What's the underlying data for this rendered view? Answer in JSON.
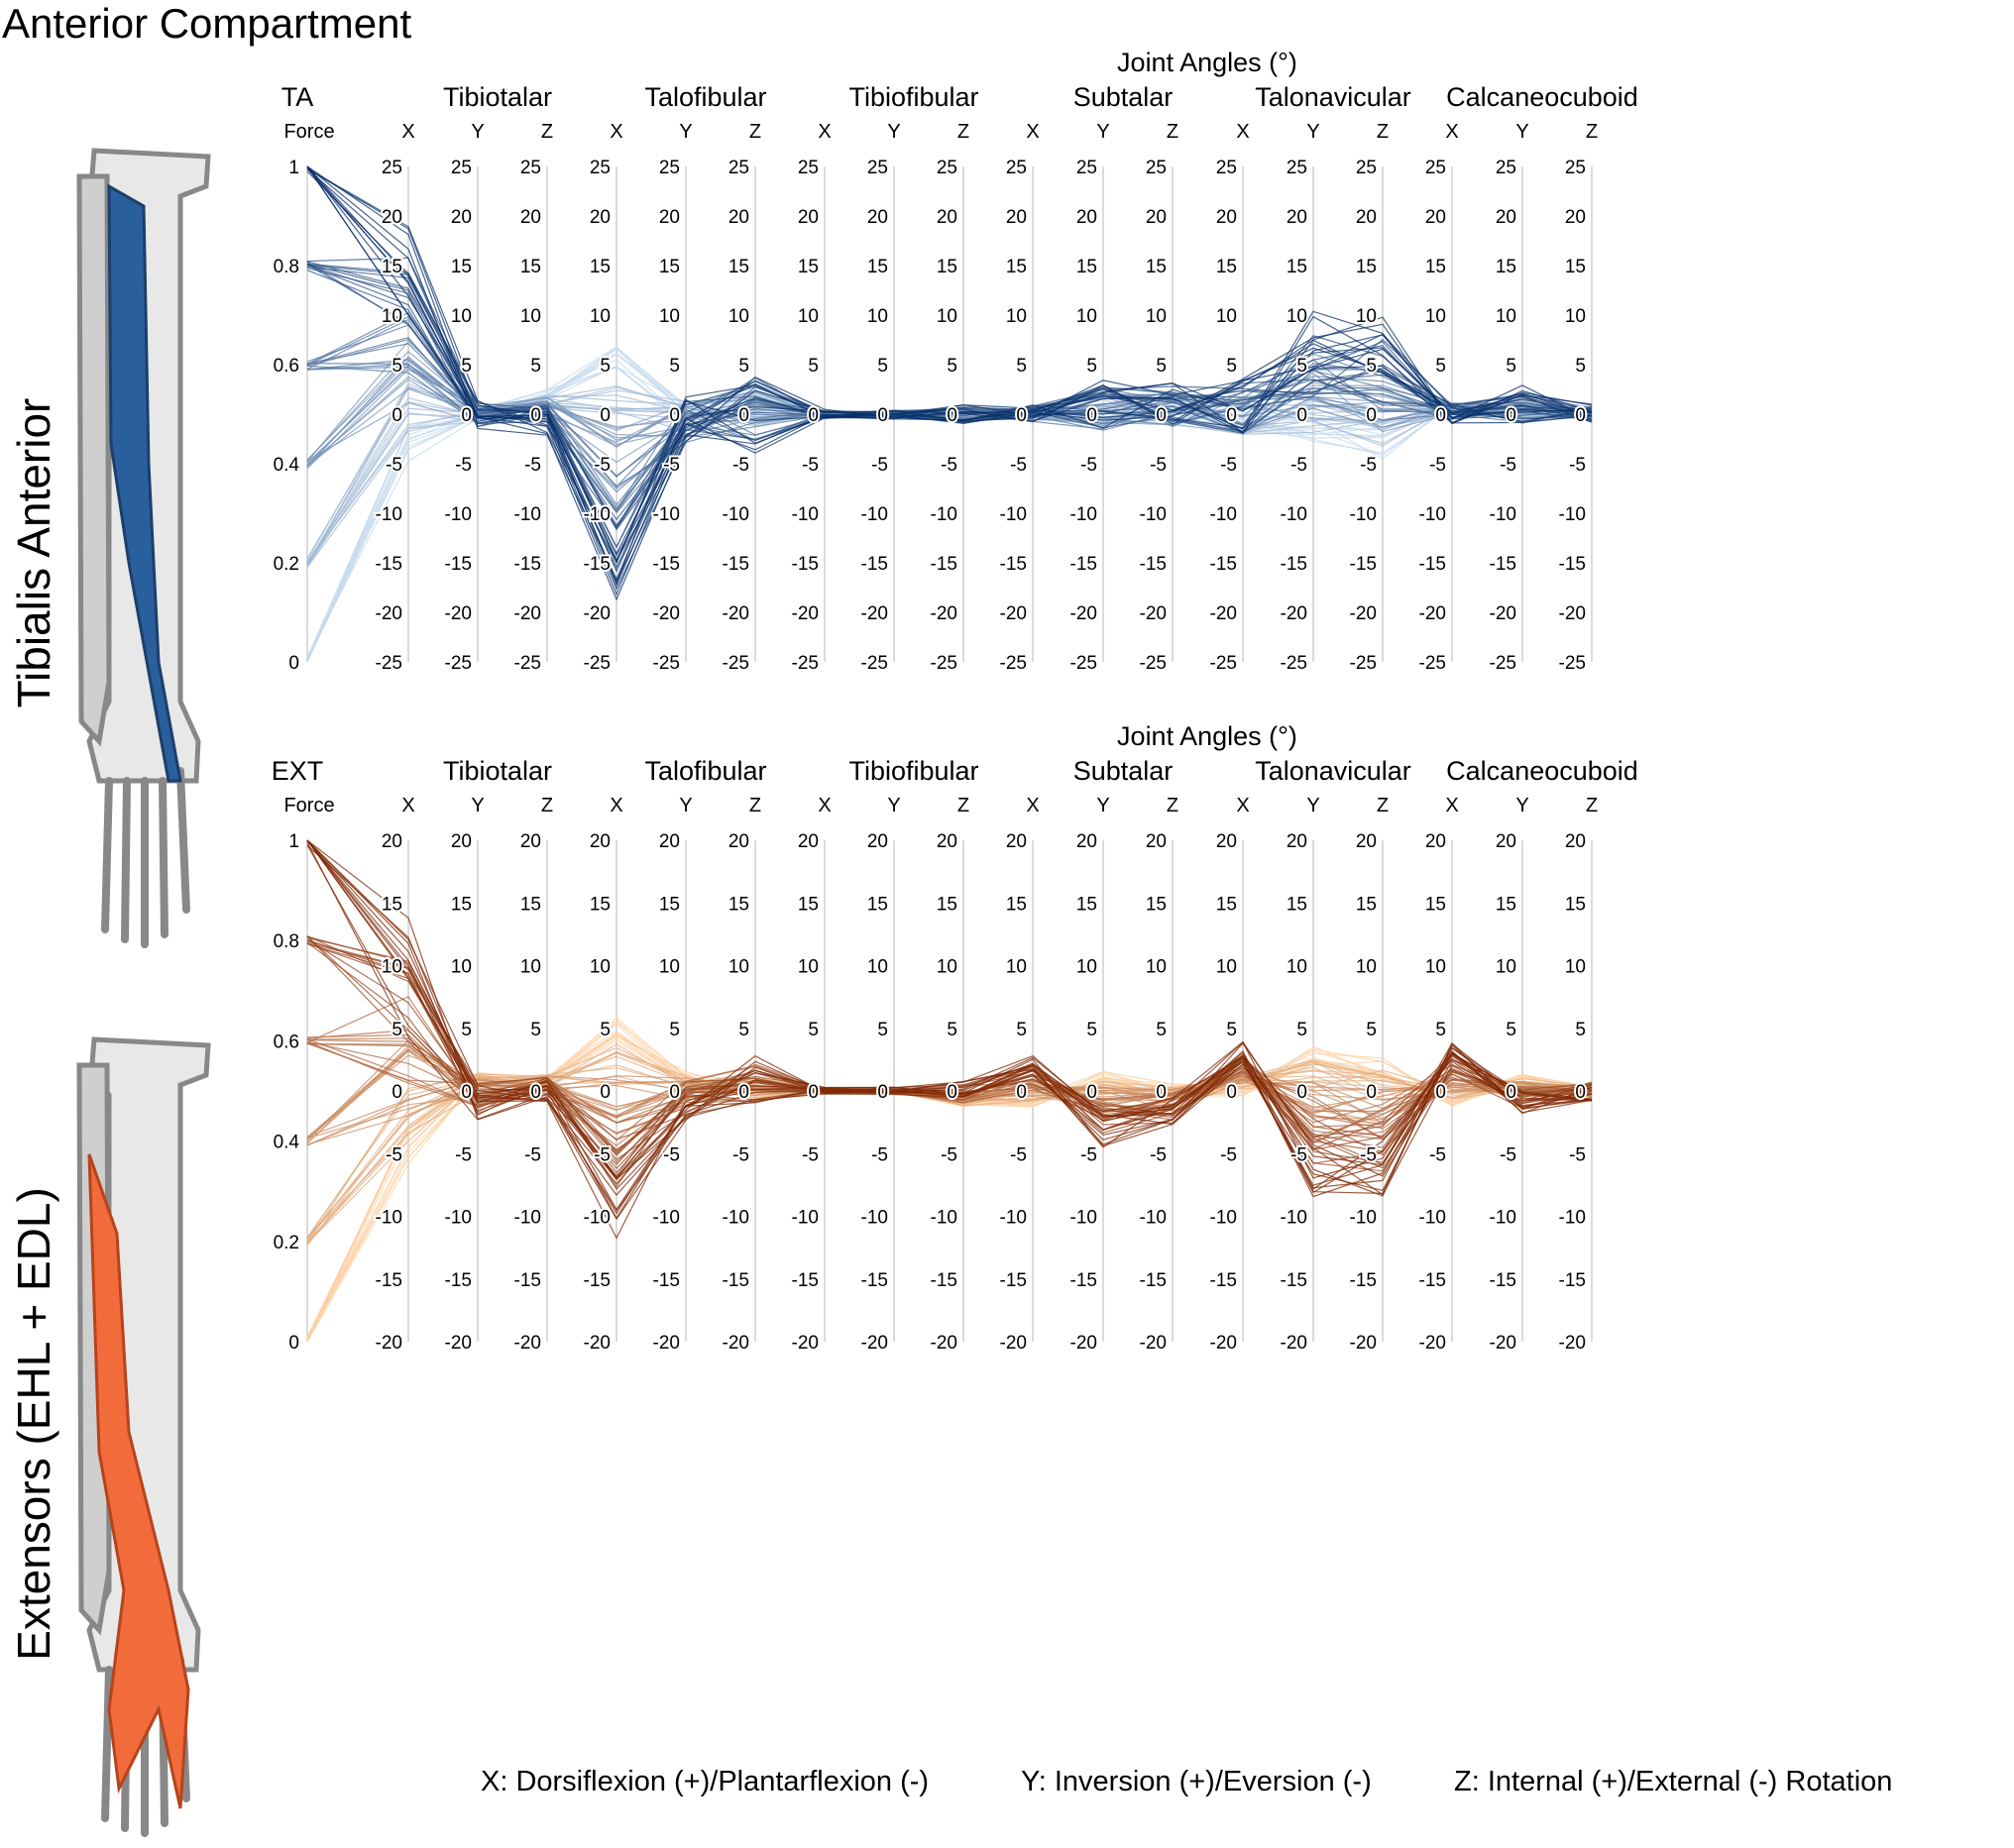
{
  "title": "Anterior Compartment",
  "panels": [
    {
      "side_label": "Tibialis Anterior",
      "muscle": "TA",
      "force_label": "Force",
      "group_title": "Joint Angles (°)",
      "color_light": "#c6dbef",
      "color_dark": "#08306b",
      "muscle_color": "#2a5f9e"
    },
    {
      "side_label": "Extensors (EHL + EDL)",
      "muscle": "EXT",
      "force_label": "Force",
      "group_title": "Joint Angles (°)",
      "color_light": "#fdd0a2",
      "color_dark": "#7f2704",
      "muscle_color": "#f26b3a"
    }
  ],
  "footer": {
    "x_def": "X: Dorsiflexion (+)/Plantarflexion (-)",
    "y_def": "Y: Inversion (+)/Eversion (-)",
    "z_def": "Z: Internal (+)/External (-) Rotation"
  },
  "chart_data": [
    {
      "type": "parallel_coordinates",
      "title": "Tibialis Anterior",
      "xlabel": "Joint Angles (°)",
      "joints": [
        "Tibiotalar",
        "Talofibular",
        "Tibiofibular",
        "Subtalar",
        "Talonavicular",
        "Calcaneocuboid"
      ],
      "axis_letters": [
        "X",
        "Y",
        "Z"
      ],
      "force_axis": {
        "label": "Force",
        "muscle": "TA",
        "range": [
          0,
          1
        ],
        "ticks": [
          "1",
          "0.8",
          "0.6",
          "0.4",
          "0.2",
          "0"
        ]
      },
      "angle_axis_range": [
        -25,
        25
      ],
      "angle_ticks": [
        "25",
        "20",
        "15",
        "10",
        "5",
        "0",
        "-5",
        "-10",
        "-15",
        "-20",
        "-25"
      ],
      "force_levels": [
        0,
        0.2,
        0.4,
        0.6,
        0.8,
        1.0
      ],
      "profile_description": "Joint angle per axis versus force; mean angle at force = 1 (degrees)",
      "angles_at_full_force": [
        15,
        0,
        -1,
        -17,
        -1,
        0,
        0,
        0,
        0,
        0,
        1,
        1,
        1,
        7,
        6,
        0,
        1,
        0
      ],
      "spread_at_full_force": [
        5,
        1.5,
        1.5,
        3,
        3,
        4,
        0.5,
        0.5,
        1,
        1,
        3,
        2.5,
        3,
        4,
        4,
        1,
        2,
        1
      ],
      "angles_at_zero_force": [
        -3,
        0,
        2,
        6,
        0,
        1,
        0,
        0,
        0,
        0,
        0,
        0,
        -1,
        -2,
        -3,
        1,
        0,
        0
      ]
    },
    {
      "type": "parallel_coordinates",
      "title": "Extensors (EHL + EDL)",
      "xlabel": "Joint Angles (°)",
      "joints": [
        "Tibiotalar",
        "Talofibular",
        "Tibiofibular",
        "Subtalar",
        "Talonavicular",
        "Calcaneocuboid"
      ],
      "axis_letters": [
        "X",
        "Y",
        "Z"
      ],
      "force_axis": {
        "label": "Force",
        "muscle": "EXT",
        "range": [
          0,
          1
        ],
        "ticks": [
          "1",
          "0.8",
          "0.6",
          "0.4",
          "0.2",
          "0"
        ]
      },
      "angle_axis_range": [
        -20,
        20
      ],
      "angle_ticks": [
        "20",
        "15",
        "10",
        "5",
        "0",
        "-5",
        "-10",
        "-15",
        "-20"
      ],
      "force_levels": [
        0,
        0.2,
        0.4,
        0.6,
        0.8,
        1.0
      ],
      "profile_description": "Joint angle per axis versus force; mean angle at force = 1 (degrees)",
      "angles_at_full_force": [
        9,
        -1,
        0,
        -9,
        -1,
        1,
        0,
        0,
        0,
        2,
        -3,
        -2,
        3,
        -6,
        -6,
        3,
        -1,
        0
      ],
      "spread_at_full_force": [
        5,
        1.5,
        1,
        3,
        1.5,
        2,
        0.3,
        0.3,
        0.8,
        1,
        1.5,
        1.5,
        1,
        2.5,
        2.5,
        1,
        1,
        0.8
      ],
      "angles_at_zero_force": [
        -4,
        1,
        1,
        5,
        1,
        0,
        0,
        0,
        -1,
        -1,
        1,
        0,
        0,
        3,
        2,
        -1,
        1,
        0
      ]
    }
  ]
}
